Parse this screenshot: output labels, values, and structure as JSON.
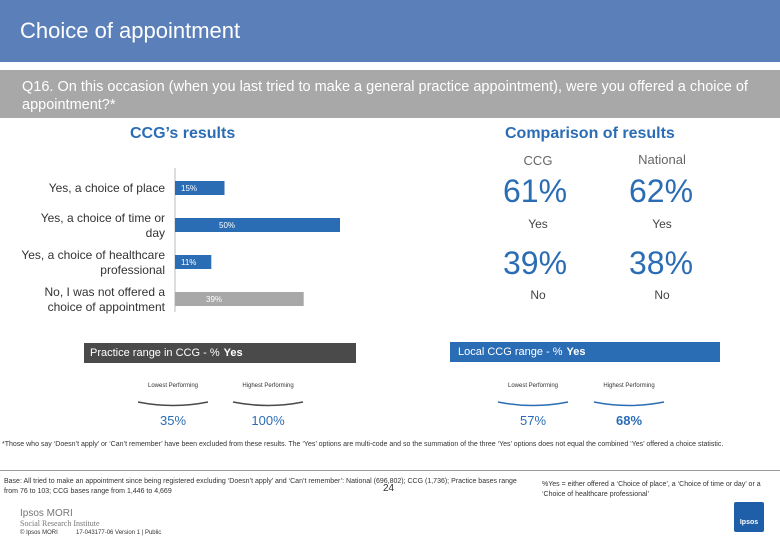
{
  "header": {
    "title": "Choice of appointment"
  },
  "question": {
    "text": "Q16. On this occasion (when you last tried to make a general practice appointment), were you offered a choice of appointment?*"
  },
  "ccg_section": {
    "title": "CCG’s results"
  },
  "comparison": {
    "title": "Comparison of results",
    "col_ccg": "CCG",
    "col_national": "National",
    "yes_ccg": "61%",
    "yes_national": "62%",
    "yes_label": "Yes",
    "no_ccg": "39%",
    "no_national": "38%",
    "no_label": "No"
  },
  "chart_data": {
    "type": "bar",
    "orientation": "horizontal",
    "categories": [
      "Yes, a choice of place",
      "Yes, a choice of time or day",
      "Yes, a choice of healthcare professional",
      "No, I was not offered a choice of appointment"
    ],
    "category_lines": [
      [
        "Yes, a choice of place"
      ],
      [
        "Yes, a choice of time or",
        "day"
      ],
      [
        "Yes, a choice of healthcare",
        "professional"
      ],
      [
        "No, I was not offered a",
        "choice of appointment"
      ]
    ],
    "values": [
      15,
      50,
      11,
      39
    ],
    "value_labels": [
      "15%",
      "50%",
      "11%",
      "39%"
    ],
    "bar_colors": [
      "#2b6db5",
      "#2b6db5",
      "#2b6db5",
      "#a8a8a8"
    ],
    "xlim": [
      0,
      100
    ],
    "title": "",
    "xlabel": "",
    "ylabel": ""
  },
  "practice_range": {
    "label": "Practice range in CCG - % ",
    "label_bold": "Yes",
    "color": "#4a4a4a",
    "lowest_label": "Lowest Performing",
    "lowest_value": "35%",
    "highest_label": "Highest Performing",
    "highest_value": "100%"
  },
  "local_range": {
    "label": "Local CCG range - % ",
    "label_bold": "Yes",
    "color": "#2b6db5",
    "lowest_label": "Lowest Performing",
    "lowest_value": "57%",
    "highest_label": "Highest Performing",
    "highest_value": "68%"
  },
  "footnote": "*Those who say ‘Doesn’t apply’ or ‘Can’t remember’ have been excluded from these results. The ‘Yes’ options are multi-code and so the summation of the three ‘Yes’ options does not equal the combined ‘Yes’ offered a choice statistic.",
  "base_text": "Base: All tried to make an appointment since being registered excluding ‘Doesn’t apply’ and ‘Can’t remember’: National (696,802); CCG (1,736); Practice bases range from 76 to 103; CCG bases range from 1,446 to 4,669",
  "yes_note": "%Yes = either offered a ‘Choice of place’, a ‘Choice of time or day’ or a ‘Choice of healthcare professional’",
  "footer": {
    "logo_main": "Ipsos MORI",
    "logo_sub": "Social Research Institute",
    "copyright": "© Ipsos MORI",
    "ref": "17-043177-06 Version 1 | Public",
    "page": "24",
    "ipsos_logo": "Ipsos"
  }
}
